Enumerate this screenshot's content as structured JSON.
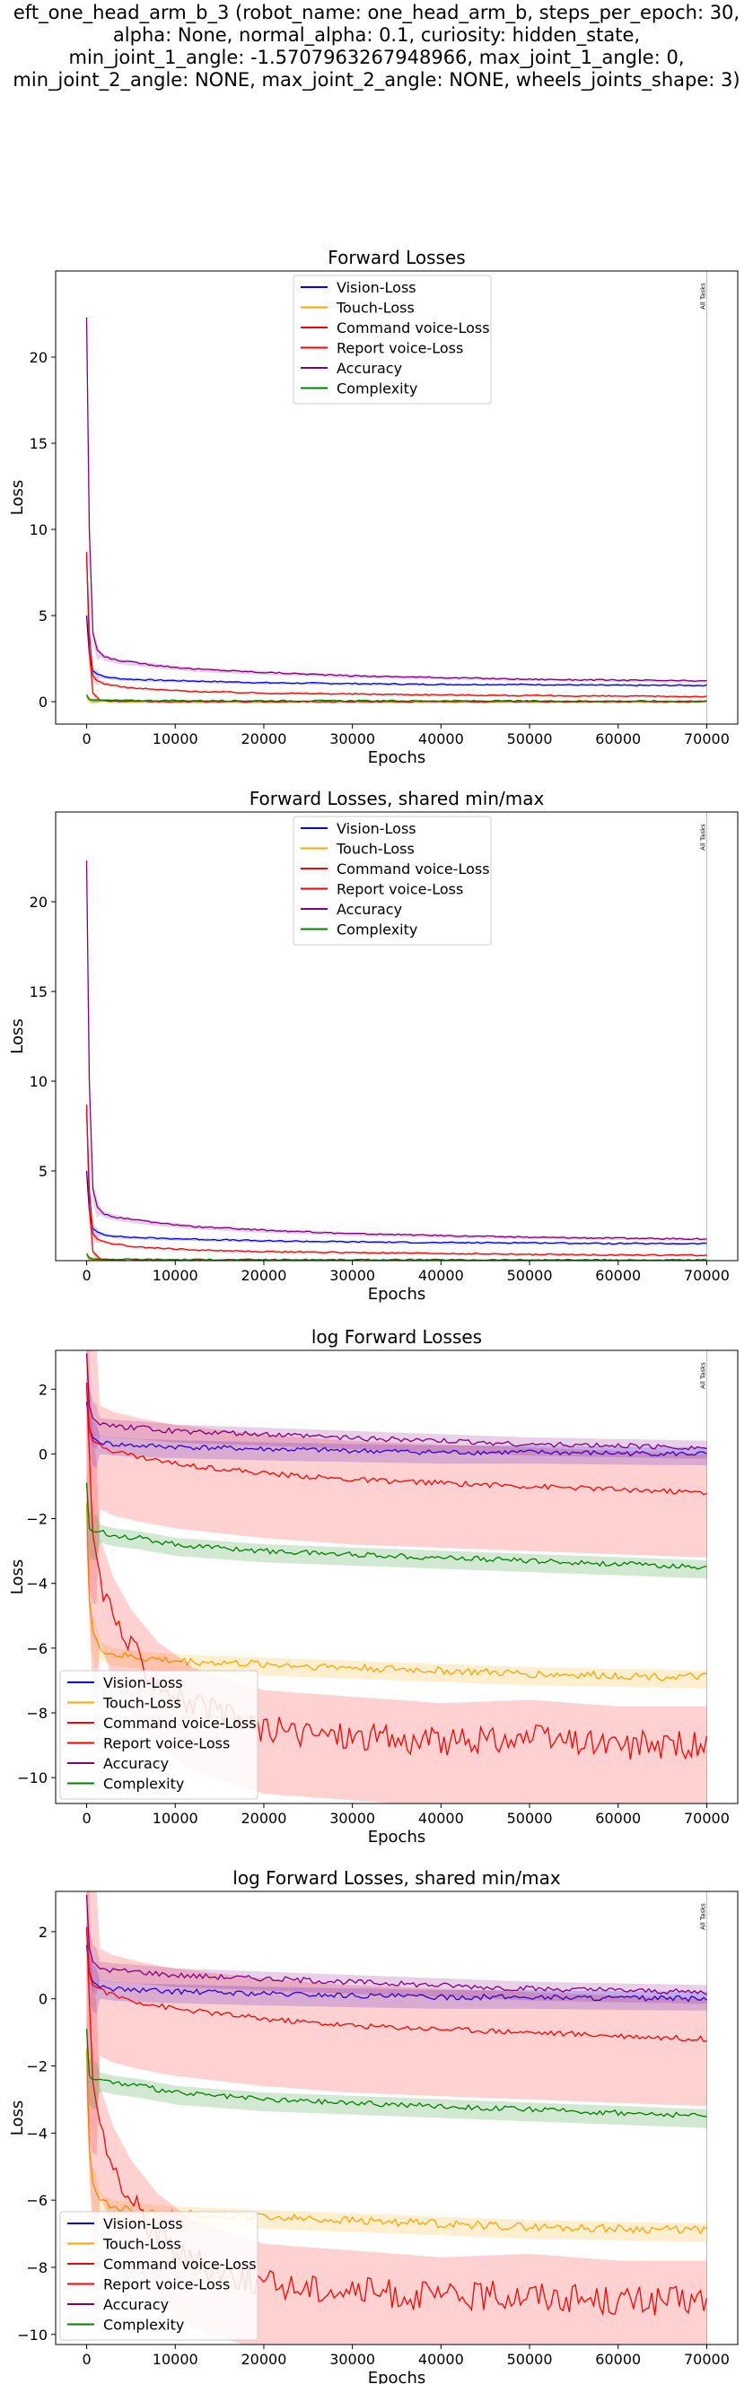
{
  "figure": {
    "suptitle": "eft_one_head_arm_b_3 (robot_name: one_head_arm_b, steps_per_epoch: 30,\nalpha: None, normal_alpha: 0.1, curiosity: hidden_state,\nmin_joint_1_angle: -1.5707963267948966, max_joint_1_angle: 0,\nmin_joint_2_angle: NONE, max_joint_2_angle: NONE, wheels_joints_shape: 3)",
    "colors": {
      "vision": "#0000ff",
      "touch": "#ffa500",
      "command": "#ff0000",
      "report": "#ff0000",
      "accuracy": "#800080",
      "complexity": "#008000"
    }
  },
  "chart_data": [
    {
      "type": "line",
      "title": "Forward Losses",
      "xlabel": "Epochs",
      "ylabel": "Loss",
      "xlim": [
        -3500,
        73500
      ],
      "ylim": [
        -1.3,
        25
      ],
      "xticks": [
        0,
        10000,
        20000,
        30000,
        40000,
        50000,
        60000,
        70000
      ],
      "yticks": [
        0,
        5,
        10,
        15,
        20
      ],
      "grid": false,
      "legend": "top-center",
      "vline": {
        "x": 70000,
        "label": "All Tasks"
      },
      "series": [
        {
          "name": "Vision-Loss",
          "color": "#0000ff",
          "x": [
            0,
            300,
            700,
            1200,
            2000,
            3500,
            5000,
            8000,
            12000,
            20000,
            30000,
            40000,
            50000,
            60000,
            70000
          ],
          "y": [
            5.0,
            2.8,
            1.8,
            1.6,
            1.45,
            1.35,
            1.3,
            1.25,
            1.2,
            1.1,
            1.05,
            1.0,
            1.0,
            0.95,
            0.95
          ]
        },
        {
          "name": "Touch-Loss",
          "color": "#ffa500",
          "x": [
            0,
            300,
            700,
            1500,
            3000,
            10000,
            30000,
            70000
          ],
          "y": [
            0.3,
            0.1,
            0.02,
            0.01,
            0.005,
            0.002,
            0.001,
            0.001
          ]
        },
        {
          "name": "Command voice-Loss",
          "color": "#ff0000",
          "x": [
            0,
            300,
            700,
            1200,
            2000,
            3500,
            5000,
            8000,
            12000,
            20000,
            30000,
            40000,
            50000,
            60000,
            70000
          ],
          "y": [
            8.5,
            4.0,
            1.5,
            1.2,
            1.05,
            0.9,
            0.8,
            0.7,
            0.6,
            0.5,
            0.45,
            0.4,
            0.35,
            0.32,
            0.3
          ]
        },
        {
          "name": "Report voice-Loss",
          "color": "#ff0000",
          "x": [
            0,
            300,
            700,
            1500,
            3000,
            6000,
            10000,
            20000,
            70000
          ],
          "y": [
            8.7,
            3.0,
            0.5,
            0.1,
            0.02,
            0.005,
            0.001,
            0.0005,
            0.0002
          ]
        },
        {
          "name": "Accuracy",
          "color": "#800080",
          "x": [
            0,
            300,
            700,
            1200,
            2000,
            3500,
            5000,
            8000,
            12000,
            20000,
            30000,
            40000,
            50000,
            60000,
            70000
          ],
          "y": [
            22.3,
            10.0,
            4.0,
            3.0,
            2.6,
            2.4,
            2.3,
            2.1,
            1.9,
            1.7,
            1.5,
            1.4,
            1.3,
            1.25,
            1.2
          ]
        },
        {
          "name": "Complexity",
          "color": "#008000",
          "x": [
            0,
            300,
            700,
            1500,
            3000,
            10000,
            30000,
            70000
          ],
          "y": [
            0.4,
            0.15,
            0.1,
            0.09,
            0.08,
            0.06,
            0.05,
            0.03
          ]
        }
      ]
    },
    {
      "type": "line",
      "title": "Forward Losses, shared min/max",
      "xlabel": "Epochs",
      "ylabel": "Loss",
      "xlim": [
        -3500,
        73500
      ],
      "ylim": [
        0,
        25
      ],
      "xticks": [
        0,
        10000,
        20000,
        30000,
        40000,
        50000,
        60000,
        70000
      ],
      "yticks": [
        5,
        10,
        15,
        20
      ],
      "grid": false,
      "legend": "top-center",
      "vline": {
        "x": 70000,
        "label": "All Tasks"
      },
      "series": [
        {
          "name": "Vision-Loss",
          "color": "#0000ff",
          "x": [
            0,
            300,
            700,
            1200,
            2000,
            3500,
            5000,
            8000,
            12000,
            20000,
            30000,
            40000,
            50000,
            60000,
            70000
          ],
          "y": [
            5.0,
            2.8,
            1.8,
            1.6,
            1.45,
            1.35,
            1.3,
            1.25,
            1.2,
            1.1,
            1.05,
            1.0,
            1.0,
            0.95,
            0.95
          ]
        },
        {
          "name": "Touch-Loss",
          "color": "#ffa500",
          "x": [
            0,
            300,
            700,
            1500,
            3000,
            10000,
            30000,
            70000
          ],
          "y": [
            0.3,
            0.1,
            0.02,
            0.01,
            0.005,
            0.002,
            0.001,
            0.001
          ]
        },
        {
          "name": "Command voice-Loss",
          "color": "#ff0000",
          "x": [
            0,
            300,
            700,
            1200,
            2000,
            3500,
            5000,
            8000,
            12000,
            20000,
            30000,
            40000,
            50000,
            60000,
            70000
          ],
          "y": [
            8.5,
            4.0,
            1.5,
            1.2,
            1.05,
            0.9,
            0.8,
            0.7,
            0.6,
            0.5,
            0.45,
            0.4,
            0.35,
            0.32,
            0.3
          ]
        },
        {
          "name": "Report voice-Loss",
          "color": "#ff0000",
          "x": [
            0,
            300,
            700,
            1500,
            3000,
            6000,
            10000,
            20000,
            70000
          ],
          "y": [
            8.7,
            3.0,
            0.5,
            0.1,
            0.02,
            0.005,
            0.001,
            0.0005,
            0.0002
          ]
        },
        {
          "name": "Accuracy",
          "color": "#800080",
          "x": [
            0,
            300,
            700,
            1200,
            2000,
            3500,
            5000,
            8000,
            12000,
            20000,
            30000,
            40000,
            50000,
            60000,
            70000
          ],
          "y": [
            22.3,
            10.0,
            4.0,
            3.0,
            2.6,
            2.4,
            2.3,
            2.1,
            1.9,
            1.7,
            1.5,
            1.4,
            1.3,
            1.25,
            1.2
          ]
        },
        {
          "name": "Complexity",
          "color": "#008000",
          "x": [
            0,
            300,
            700,
            1500,
            3000,
            10000,
            30000,
            70000
          ],
          "y": [
            0.4,
            0.15,
            0.1,
            0.09,
            0.08,
            0.06,
            0.05,
            0.03
          ]
        }
      ]
    },
    {
      "type": "line",
      "title": "log Forward Losses",
      "xlabel": "Epochs",
      "ylabel": "Loss",
      "xlim": [
        -3500,
        73500
      ],
      "ylim": [
        -10.8,
        3.2
      ],
      "xticks": [
        0,
        10000,
        20000,
        30000,
        40000,
        50000,
        60000,
        70000
      ],
      "yticks": [
        -10,
        -8,
        -6,
        -4,
        -2,
        0,
        2
      ],
      "grid": false,
      "legend": "bottom-left",
      "vline": {
        "x": 70000,
        "label": "All Tasks"
      },
      "series": [
        {
          "name": "Vision-Loss",
          "color": "#0000ff",
          "x": [
            0,
            300,
            700,
            1500,
            3000,
            6000,
            10000,
            20000,
            30000,
            40000,
            50000,
            60000,
            70000
          ],
          "y": [
            1.6,
            0.8,
            0.5,
            0.35,
            0.3,
            0.25,
            0.22,
            0.15,
            0.1,
            0.05,
            0.05,
            0.02,
            0.0
          ]
        },
        {
          "name": "Touch-Loss",
          "color": "#ffa500",
          "x": [
            0,
            300,
            700,
            1500,
            3000,
            6000,
            10000,
            20000,
            30000,
            40000,
            50000,
            60000,
            70000
          ],
          "y": [
            -1.5,
            -4.5,
            -5.5,
            -6.0,
            -6.2,
            -6.3,
            -6.4,
            -6.5,
            -6.6,
            -6.7,
            -6.8,
            -6.85,
            -6.9
          ]
        },
        {
          "name": "Command voice-Loss",
          "color": "#ff0000",
          "x": [
            0,
            300,
            700,
            1500,
            3000,
            6000,
            10000,
            20000,
            30000,
            40000,
            50000,
            60000,
            70000
          ],
          "y": [
            2.1,
            0.8,
            0.4,
            0.3,
            0.1,
            -0.1,
            -0.3,
            -0.6,
            -0.8,
            -0.9,
            -1.0,
            -1.1,
            -1.2
          ]
        },
        {
          "name": "Report voice-Loss",
          "color": "#ff0000",
          "x": [
            0,
            300,
            700,
            1500,
            3000,
            5000,
            8000,
            12000,
            20000,
            30000,
            40000,
            50000,
            60000,
            70000
          ],
          "y": [
            2.2,
            0.0,
            -2.5,
            -3.8,
            -5.0,
            -6.0,
            -7.0,
            -7.8,
            -8.5,
            -8.7,
            -8.9,
            -8.8,
            -9.0,
            -9.0
          ]
        },
        {
          "name": "Accuracy",
          "color": "#800080",
          "x": [
            0,
            300,
            700,
            1500,
            3000,
            6000,
            10000,
            20000,
            30000,
            40000,
            50000,
            60000,
            70000
          ],
          "y": [
            3.1,
            1.5,
            1.1,
            0.9,
            0.85,
            0.8,
            0.7,
            0.6,
            0.5,
            0.4,
            0.3,
            0.25,
            0.2
          ]
        },
        {
          "name": "Complexity",
          "color": "#008000",
          "x": [
            0,
            300,
            700,
            1500,
            3000,
            6000,
            10000,
            20000,
            30000,
            40000,
            50000,
            60000,
            70000
          ],
          "y": [
            -0.9,
            -2.3,
            -2.4,
            -2.4,
            -2.5,
            -2.6,
            -2.8,
            -3.0,
            -3.1,
            -3.2,
            -3.3,
            -3.4,
            -3.5
          ]
        }
      ]
    },
    {
      "type": "line",
      "title": "log Forward Losses, shared min/max",
      "xlabel": "Epochs",
      "ylabel": "Loss",
      "xlim": [
        -3500,
        73500
      ],
      "ylim": [
        -10.3,
        3.2
      ],
      "xticks": [
        0,
        10000,
        20000,
        30000,
        40000,
        50000,
        60000,
        70000
      ],
      "yticks": [
        -10,
        -8,
        -6,
        -4,
        -2,
        0,
        2
      ],
      "grid": false,
      "legend": "bottom-left",
      "vline": {
        "x": 70000,
        "label": "All Tasks"
      },
      "series": [
        {
          "name": "Vision-Loss",
          "color": "#0000ff",
          "x": [
            0,
            300,
            700,
            1500,
            3000,
            6000,
            10000,
            20000,
            30000,
            40000,
            50000,
            60000,
            70000
          ],
          "y": [
            1.6,
            0.8,
            0.5,
            0.35,
            0.3,
            0.25,
            0.22,
            0.15,
            0.1,
            0.05,
            0.05,
            0.02,
            0.0
          ]
        },
        {
          "name": "Touch-Loss",
          "color": "#ffa500",
          "x": [
            0,
            300,
            700,
            1500,
            3000,
            6000,
            10000,
            20000,
            30000,
            40000,
            50000,
            60000,
            70000
          ],
          "y": [
            -1.5,
            -4.5,
            -5.5,
            -6.0,
            -6.2,
            -6.3,
            -6.4,
            -6.5,
            -6.6,
            -6.7,
            -6.8,
            -6.85,
            -6.9
          ]
        },
        {
          "name": "Command voice-Loss",
          "color": "#ff0000",
          "x": [
            0,
            300,
            700,
            1500,
            3000,
            6000,
            10000,
            20000,
            30000,
            40000,
            50000,
            60000,
            70000
          ],
          "y": [
            2.1,
            0.8,
            0.4,
            0.3,
            0.1,
            -0.1,
            -0.3,
            -0.6,
            -0.8,
            -0.9,
            -1.0,
            -1.1,
            -1.2
          ]
        },
        {
          "name": "Report voice-Loss",
          "color": "#ff0000",
          "x": [
            0,
            300,
            700,
            1500,
            3000,
            5000,
            8000,
            12000,
            20000,
            30000,
            40000,
            50000,
            60000,
            70000
          ],
          "y": [
            2.2,
            0.0,
            -2.5,
            -3.8,
            -5.0,
            -6.0,
            -7.0,
            -7.8,
            -8.5,
            -8.7,
            -8.9,
            -8.8,
            -9.0,
            -9.0
          ]
        },
        {
          "name": "Accuracy",
          "color": "#800080",
          "x": [
            0,
            300,
            700,
            1500,
            3000,
            6000,
            10000,
            20000,
            30000,
            40000,
            50000,
            60000,
            70000
          ],
          "y": [
            3.1,
            1.5,
            1.1,
            0.9,
            0.85,
            0.8,
            0.7,
            0.6,
            0.5,
            0.4,
            0.3,
            0.25,
            0.2
          ]
        },
        {
          "name": "Complexity",
          "color": "#008000",
          "x": [
            0,
            300,
            700,
            1500,
            3000,
            6000,
            10000,
            20000,
            30000,
            40000,
            50000,
            60000,
            70000
          ],
          "y": [
            -0.9,
            -2.3,
            -2.4,
            -2.4,
            -2.5,
            -2.6,
            -2.8,
            -3.0,
            -3.1,
            -3.2,
            -3.3,
            -3.4,
            -3.5
          ]
        }
      ]
    }
  ]
}
